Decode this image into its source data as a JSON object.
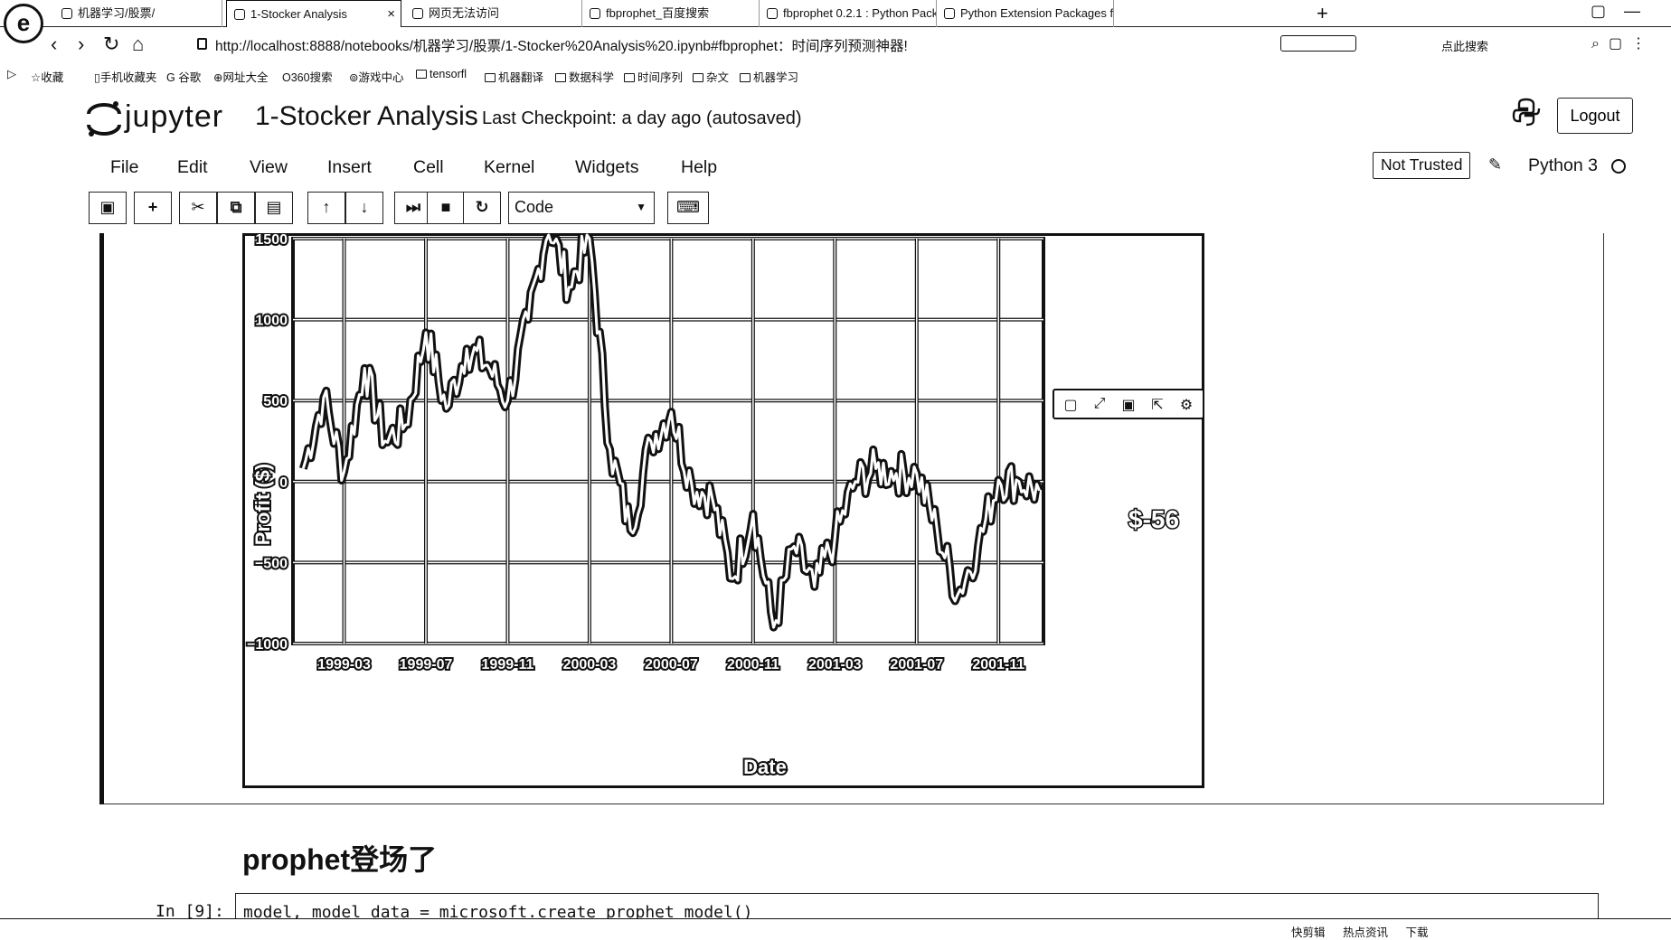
{
  "browser": {
    "tabs": [
      {
        "label": "机器学习/股票/",
        "active": false
      },
      {
        "label": "1-Stocker Analysis",
        "active": true
      },
      {
        "label": "网页无法访问",
        "active": false
      },
      {
        "label": "fbprophet_百度搜索",
        "active": false
      },
      {
        "label": "fbprophet 0.2.1 : Python Pack",
        "active": false
      },
      {
        "label": "Python Extension Packages fc",
        "active": false
      }
    ],
    "url": "http://localhost:8888/notebooks/机器学习/股票/1-Stocker%20Analysis%20.ipynb#fbprophet：时间序列预测神器!",
    "hot_search": "点此搜索",
    "bookmarks": [
      "收藏",
      "手机收藏夹",
      "谷歌",
      "网址大全",
      "360搜索",
      "游戏中心",
      "tensorfl",
      "机器翻译",
      "数据科学",
      "时间序列",
      "杂文",
      "机器学习"
    ]
  },
  "jupyter": {
    "logo_text": "jupyter",
    "notebook_title": "1-Stocker Analysis",
    "checkpoint": "Last Checkpoint: a day ago (autosaved)",
    "logout_label": "Logout",
    "menus": [
      "File",
      "Edit",
      "View",
      "Insert",
      "Cell",
      "Kernel",
      "Widgets",
      "Help"
    ],
    "trust_label": "Not Trusted",
    "kernel_name": "Python 3",
    "cell_type": "Code"
  },
  "chart_data": {
    "type": "line",
    "title": "",
    "xlabel": "Date",
    "ylabel": "Profit ($)",
    "ylim": [
      -1000,
      1500
    ],
    "yticks": [
      "1500",
      "1000",
      "500",
      "0",
      "−500",
      "−1000"
    ],
    "xticks": [
      "1999-03",
      "1999-07",
      "1999-11",
      "2000-03",
      "2000-07",
      "2000-11",
      "2001-03",
      "2001-07",
      "2001-11"
    ],
    "grid": true,
    "annotation": "$-56",
    "series": [
      {
        "x": [
          "1999-01",
          "1999-02",
          "1999-03",
          "1999-04",
          "1999-05",
          "1999-06",
          "1999-07",
          "1999-08",
          "1999-09",
          "1999-10",
          "1999-11",
          "1999-12",
          "2000-01",
          "2000-02",
          "2000-03",
          "2000-04",
          "2000-05",
          "2000-06",
          "2000-07",
          "2000-08",
          "2000-09",
          "2000-10",
          "2000-11",
          "2000-12",
          "2001-01",
          "2001-02",
          "2001-03",
          "2001-04",
          "2001-05",
          "2001-06",
          "2001-07",
          "2001-08",
          "2001-09",
          "2001-10",
          "2001-11",
          "2001-12",
          "2002-01"
        ],
        "values": [
          80,
          520,
          60,
          700,
          250,
          350,
          920,
          450,
          820,
          720,
          500,
          1000,
          1600,
          1200,
          1500,
          200,
          -300,
          250,
          430,
          -20,
          -100,
          -600,
          -200,
          -900,
          -400,
          -650,
          -350,
          0,
          80,
          50,
          50,
          -300,
          -700,
          -400,
          10,
          0,
          -56
        ]
      }
    ]
  },
  "notebook": {
    "markdown_heading": "prophet登场了",
    "in_prompt": "In [9]:",
    "code": "model, model_data = microsoft.create_prophet_model()"
  },
  "statusbar": [
    "快剪辑",
    "热点资讯",
    "下载"
  ]
}
